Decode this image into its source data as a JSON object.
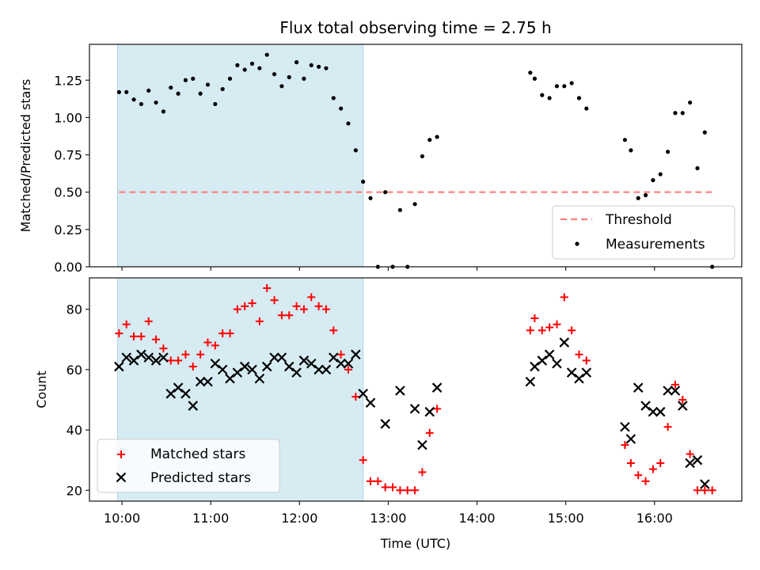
{
  "chart_data": {
    "type": "scatter",
    "title": "Flux total observing time = 2.75 h",
    "xlabel": "Time (UTC)",
    "x_ticks": [
      "10:00",
      "11:00",
      "12:00",
      "13:00",
      "14:00",
      "15:00",
      "16:00"
    ],
    "x_range": [
      "09:38",
      "16:59"
    ],
    "shaded_interval": {
      "start": "09:57",
      "end": "12:43",
      "color": "#add8e6"
    },
    "times": [
      "09:58",
      "10:03",
      "10:08",
      "10:13",
      "10:18",
      "10:23",
      "10:28",
      "10:33",
      "10:38",
      "10:43",
      "10:48",
      "10:53",
      "10:58",
      "11:03",
      "11:08",
      "11:13",
      "11:18",
      "11:23",
      "11:28",
      "11:33",
      "11:38",
      "11:43",
      "11:48",
      "11:53",
      "11:58",
      "12:03",
      "12:08",
      "12:13",
      "12:18",
      "12:23",
      "12:28",
      "12:33",
      "12:38",
      "12:43",
      "12:48",
      "12:53",
      "12:58",
      "13:03",
      "13:08",
      "13:13",
      "13:18",
      "13:23",
      "13:28",
      "13:33",
      "14:36",
      "14:39",
      "14:44",
      "14:49",
      "14:54",
      "14:59",
      "15:04",
      "15:09",
      "15:14",
      "15:40",
      "15:44",
      "15:49",
      "15:54",
      "15:59",
      "16:04",
      "16:09",
      "16:14",
      "16:19",
      "16:24",
      "16:29",
      "16:34",
      "16:39"
    ],
    "panels": [
      {
        "ylabel": "Matched/Predicted stars",
        "ylim": [
          0,
          1.49
        ],
        "y_ticks": [
          "0.00",
          "0.25",
          "0.50",
          "0.75",
          "1.00",
          "1.25"
        ],
        "y_tick_values": [
          0,
          0.25,
          0.5,
          0.75,
          1.0,
          1.25
        ],
        "threshold": {
          "name": "Threshold",
          "value": 0.5,
          "start": "09:58",
          "end": "16:39",
          "color": "#ff7f7f"
        },
        "series": [
          {
            "name": "Measurements",
            "marker": "dot",
            "color": "#000000",
            "values": [
              1.17,
              1.17,
              1.12,
              1.09,
              1.18,
              1.1,
              1.04,
              1.2,
              1.16,
              1.25,
              1.26,
              1.16,
              1.22,
              1.09,
              1.19,
              1.26,
              1.35,
              1.32,
              1.36,
              1.33,
              1.42,
              1.29,
              1.21,
              1.27,
              1.37,
              1.26,
              1.35,
              1.34,
              1.33,
              1.13,
              1.06,
              0.96,
              0.78,
              0.57,
              0.46,
              0.0,
              0.5,
              0.0,
              0.38,
              0.0,
              0.42,
              0.74,
              0.85,
              0.87,
              1.3,
              1.26,
              1.15,
              1.13,
              1.21,
              1.21,
              1.23,
              1.13,
              1.06,
              0.85,
              0.78,
              0.46,
              0.48,
              0.58,
              0.62,
              0.77,
              1.03,
              1.03,
              1.1,
              0.66,
              0.9,
              0.0
            ]
          }
        ],
        "legend": {
          "position": "lower right",
          "entries": [
            "Threshold",
            "Measurements"
          ]
        }
      },
      {
        "ylabel": "Count",
        "ylim": [
          16.4,
          90.4
        ],
        "y_ticks": [
          "20",
          "40",
          "60",
          "80"
        ],
        "y_tick_values": [
          20,
          40,
          60,
          80
        ],
        "series": [
          {
            "name": "Matched stars",
            "marker": "plus",
            "color": "#ff0000",
            "values": [
              72,
              75,
              71,
              71,
              76,
              70,
              67,
              63,
              63,
              65,
              61,
              65,
              69,
              68,
              72,
              72,
              80,
              81,
              82,
              76,
              87,
              83,
              78,
              78,
              81,
              80,
              84,
              81,
              80,
              73,
              65,
              60,
              51,
              30,
              23,
              23,
              21,
              21,
              20,
              20,
              20,
              26,
              39,
              47,
              73,
              77,
              73,
              74,
              75,
              84,
              73,
              65,
              63,
              35,
              29,
              25,
              23,
              27,
              29,
              41,
              55,
              50,
              32,
              20,
              20,
              20
            ]
          },
          {
            "name": "Predicted stars",
            "marker": "x",
            "color": "#000000",
            "values": [
              61,
              64,
              63,
              65,
              64,
              63,
              64,
              52,
              54,
              52,
              48,
              56,
              56,
              62,
              60,
              57,
              59,
              61,
              60,
              57,
              61,
              64,
              64,
              61,
              59,
              63,
              62,
              60,
              60,
              64,
              62,
              62,
              65,
              52,
              49,
              null,
              42,
              null,
              53,
              null,
              47,
              35,
              46,
              54,
              56,
              61,
              63,
              65,
              62,
              69,
              59,
              57,
              59,
              41,
              37,
              54,
              48,
              46,
              46,
              53,
              53,
              48,
              29,
              30,
              22,
              null
            ]
          }
        ],
        "legend": {
          "position": "lower left",
          "entries": [
            "Matched stars",
            "Predicted stars"
          ]
        }
      }
    ]
  }
}
